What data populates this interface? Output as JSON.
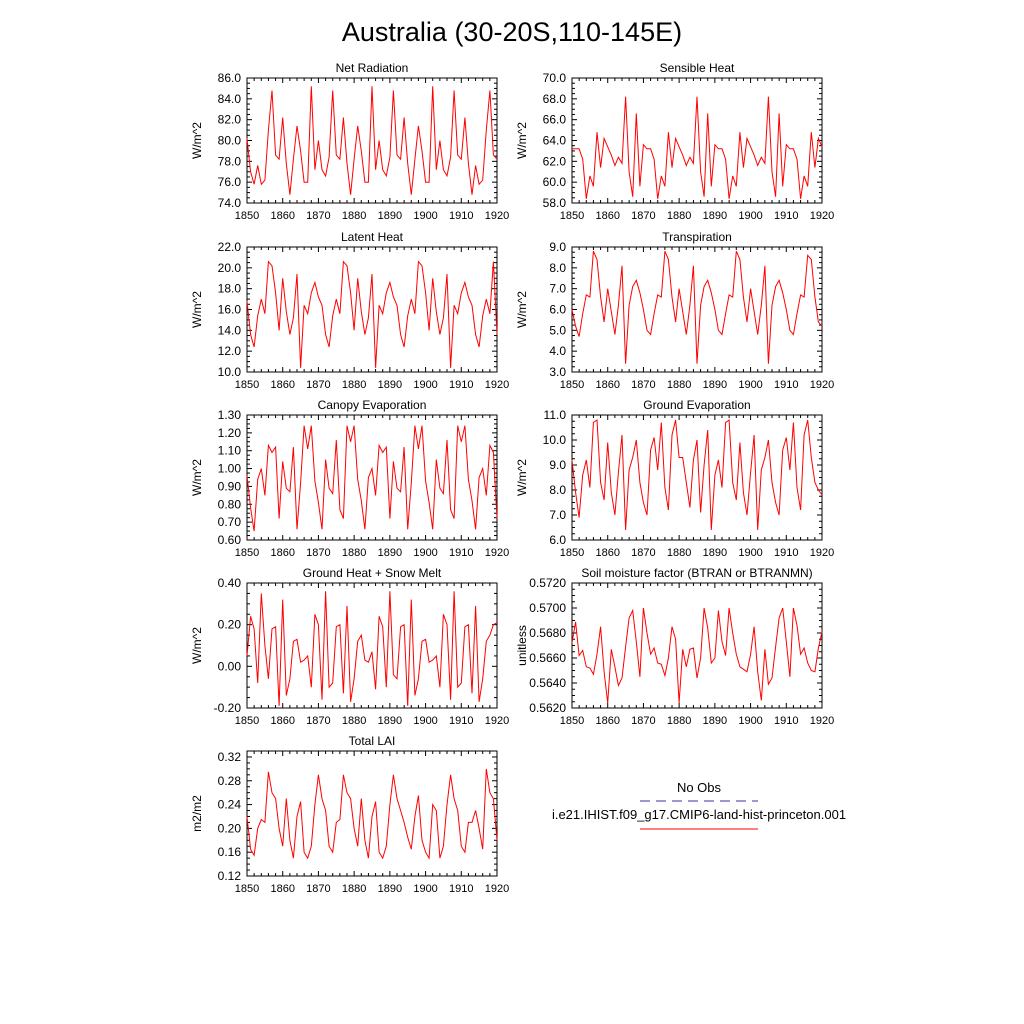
{
  "page": {
    "title": "Australia (30-20S,110-145E)"
  },
  "legend": {
    "obs_label": "No Obs",
    "model_label": "i.e21.IHIST.f09_g17.CMIP6-land-hist-princeton.001",
    "obs_color": "#3333aa",
    "model_color": "#ff0000"
  },
  "chart_data": [
    {
      "type": "line",
      "title": "Net Radiation",
      "ylabel": "W/m^2",
      "xlim": [
        1850,
        1920
      ],
      "ylim": [
        74.0,
        86.0
      ],
      "yticks": [
        "74.0",
        "76.0",
        "78.0",
        "80.0",
        "82.0",
        "84.0",
        "86.0"
      ],
      "xticks": [
        "1850",
        "1860",
        "1870",
        "1880",
        "1890",
        "1900",
        "1910",
        "1920"
      ],
      "x_start": 1850,
      "series": [
        {
          "color": "#ff0000",
          "values": [
            80.2,
            77.0,
            75.8,
            77.6,
            75.8,
            76.2,
            81.0,
            84.8,
            78.6,
            78.2,
            82.2,
            77.8,
            74.8,
            78.2,
            81.4,
            79.0,
            76.0,
            76.0,
            85.2,
            77.2,
            80.0,
            77.2,
            76.6,
            78.4,
            84.8,
            78.6,
            78.2,
            82.2,
            77.8,
            74.8,
            78.2,
            81.4,
            79.0,
            76.0,
            76.0,
            85.2,
            77.2,
            80.0,
            77.2,
            76.6,
            78.4,
            84.8,
            78.6,
            78.2,
            82.2,
            77.8,
            74.8,
            78.2,
            81.4,
            79.0,
            76.0,
            76.0,
            85.2,
            77.2,
            80.0,
            77.2,
            76.6,
            78.4,
            84.8,
            78.6,
            78.2,
            82.2,
            77.8,
            74.8,
            77.6,
            75.8,
            76.2,
            81.0,
            84.8,
            78.6,
            78.2
          ]
        }
      ]
    },
    {
      "type": "line",
      "title": "Sensible Heat",
      "ylabel": "W/m^2",
      "xlim": [
        1850,
        1920
      ],
      "ylim": [
        58.0,
        70.0
      ],
      "yticks": [
        "58.0",
        "60.0",
        "62.0",
        "64.0",
        "66.0",
        "68.0",
        "70.0"
      ],
      "xticks": [
        "1850",
        "1860",
        "1870",
        "1880",
        "1890",
        "1900",
        "1910",
        "1920"
      ],
      "x_start": 1850,
      "series": [
        {
          "color": "#ff0000",
          "values": [
            63.2,
            63.2,
            63.2,
            62.2,
            58.4,
            60.6,
            59.6,
            64.8,
            61.4,
            64.2,
            63.4,
            62.6,
            61.6,
            62.4,
            61.8,
            68.2,
            61.0,
            58.6,
            66.6,
            59.6,
            63.6,
            63.2,
            63.2,
            62.2,
            58.4,
            60.6,
            59.6,
            64.8,
            61.4,
            64.2,
            63.4,
            62.6,
            61.6,
            62.4,
            61.8,
            68.2,
            61.0,
            58.6,
            66.6,
            59.6,
            63.6,
            63.2,
            63.2,
            62.2,
            58.4,
            60.6,
            59.6,
            64.8,
            61.4,
            64.2,
            63.4,
            62.6,
            61.6,
            62.4,
            61.8,
            68.2,
            61.0,
            58.6,
            66.6,
            59.6,
            63.6,
            63.2,
            63.2,
            62.2,
            58.4,
            60.6,
            59.6,
            64.8,
            61.4,
            64.2,
            63.4
          ]
        }
      ]
    },
    {
      "type": "line",
      "title": "Latent Heat",
      "ylabel": "W/m^2",
      "xlim": [
        1850,
        1920
      ],
      "ylim": [
        10.0,
        22.0
      ],
      "yticks": [
        "10.0",
        "12.0",
        "14.0",
        "16.0",
        "18.0",
        "20.0",
        "22.0"
      ],
      "xticks": [
        "1850",
        "1860",
        "1870",
        "1880",
        "1890",
        "1900",
        "1910",
        "1920"
      ],
      "x_start": 1850,
      "series": [
        {
          "color": "#ff0000",
          "values": [
            16.8,
            13.6,
            12.4,
            15.4,
            17.0,
            15.6,
            20.6,
            20.2,
            17.6,
            14.0,
            19.0,
            15.8,
            13.6,
            15.2,
            19.4,
            10.4,
            16.4,
            15.6,
            17.6,
            18.6,
            17.2,
            16.4,
            13.6,
            12.4,
            15.4,
            17.0,
            15.6,
            20.6,
            20.2,
            17.6,
            14.0,
            19.0,
            15.8,
            13.6,
            15.2,
            19.4,
            10.4,
            16.4,
            15.6,
            17.6,
            18.6,
            17.2,
            16.4,
            13.6,
            12.4,
            15.4,
            17.0,
            15.6,
            20.6,
            20.2,
            17.6,
            14.0,
            19.0,
            15.8,
            13.6,
            15.2,
            19.4,
            10.4,
            16.4,
            15.6,
            17.6,
            18.6,
            17.2,
            16.4,
            13.6,
            12.4,
            15.4,
            17.0,
            15.6,
            20.6,
            13.6
          ]
        }
      ]
    },
    {
      "type": "line",
      "title": "Transpiration",
      "ylabel": "W/m^2",
      "xlim": [
        1850,
        1920
      ],
      "ylim": [
        3.0,
        9.0
      ],
      "yticks": [
        "3.0",
        "4.0",
        "5.0",
        "6.0",
        "7.0",
        "8.0",
        "9.0"
      ],
      "xticks": [
        "1850",
        "1860",
        "1870",
        "1880",
        "1890",
        "1900",
        "1910",
        "1920"
      ],
      "x_start": 1850,
      "series": [
        {
          "color": "#ff0000",
          "values": [
            6.0,
            5.2,
            4.7,
            5.8,
            6.7,
            6.6,
            8.8,
            8.4,
            6.6,
            5.4,
            7.0,
            5.9,
            4.8,
            6.2,
            8.1,
            3.4,
            6.2,
            7.1,
            7.4,
            6.8,
            6.0,
            5.0,
            4.8,
            5.8,
            6.7,
            6.6,
            8.8,
            8.4,
            6.6,
            5.4,
            7.0,
            5.9,
            4.8,
            6.2,
            8.1,
            3.4,
            6.2,
            7.1,
            7.4,
            6.8,
            6.0,
            5.0,
            4.8,
            5.8,
            6.7,
            6.6,
            8.8,
            8.4,
            6.6,
            5.4,
            7.0,
            5.9,
            4.8,
            6.2,
            8.1,
            3.4,
            6.2,
            7.1,
            7.4,
            6.8,
            6.0,
            5.0,
            4.8,
            5.8,
            6.7,
            6.6,
            8.6,
            8.4,
            6.6,
            5.4,
            5.2
          ]
        }
      ]
    },
    {
      "type": "line",
      "title": "Canopy Evaporation",
      "ylabel": "W/m^2",
      "xlim": [
        1850,
        1920
      ],
      "ylim": [
        0.6,
        1.3
      ],
      "yticks": [
        "0.60",
        "0.70",
        "0.80",
        "0.90",
        "1.00",
        "1.10",
        "1.20",
        "1.30"
      ],
      "xticks": [
        "1850",
        "1860",
        "1870",
        "1880",
        "1890",
        "1900",
        "1910",
        "1920"
      ],
      "x_start": 1850,
      "series": [
        {
          "color": "#ff0000",
          "values": [
            0.96,
            0.78,
            0.65,
            0.94,
            1.0,
            0.85,
            1.13,
            1.09,
            1.12,
            0.72,
            1.04,
            0.89,
            0.87,
            1.12,
            0.66,
            0.92,
            1.24,
            1.11,
            1.24,
            0.93,
            0.81,
            0.66,
            1.05,
            0.89,
            0.86,
            1.16,
            0.77,
            0.72,
            1.24,
            1.15,
            1.24,
            0.94,
            0.82,
            0.66,
            0.95,
            1.0,
            0.85,
            1.13,
            1.09,
            1.12,
            0.72,
            1.04,
            0.89,
            0.87,
            1.12,
            0.66,
            0.92,
            1.24,
            1.11,
            1.24,
            0.93,
            0.81,
            0.66,
            1.05,
            0.89,
            0.86,
            1.16,
            0.77,
            0.72,
            1.24,
            1.15,
            1.24,
            0.94,
            0.82,
            0.66,
            0.95,
            1.0,
            0.85,
            1.13,
            1.09,
            0.72
          ]
        }
      ]
    },
    {
      "type": "line",
      "title": "Ground Evaporation",
      "ylabel": "W/m^2",
      "xlim": [
        1850,
        1920
      ],
      "ylim": [
        6.0,
        11.0
      ],
      "yticks": [
        "6.0",
        "7.0",
        "8.0",
        "9.0",
        "10.0",
        "11.0"
      ],
      "xticks": [
        "1850",
        "1860",
        "1870",
        "1880",
        "1890",
        "1900",
        "1910",
        "1920"
      ],
      "x_start": 1850,
      "series": [
        {
          "color": "#ff0000",
          "values": [
            9.2,
            7.9,
            6.9,
            8.6,
            9.2,
            8.1,
            10.7,
            10.8,
            8.3,
            7.6,
            9.9,
            7.9,
            7.0,
            8.7,
            10.2,
            6.4,
            8.8,
            9.3,
            10.0,
            8.3,
            7.5,
            7.0,
            9.6,
            10.1,
            8.8,
            10.7,
            8.1,
            7.2,
            10.2,
            10.8,
            9.3,
            9.3,
            8.3,
            7.3,
            9.2,
            10.0,
            7.1,
            9.0,
            10.4,
            6.4,
            8.6,
            9.2,
            8.1,
            10.7,
            10.8,
            8.3,
            7.6,
            9.9,
            7.9,
            7.0,
            8.7,
            10.2,
            6.4,
            8.8,
            9.3,
            10.0,
            8.3,
            7.5,
            7.0,
            9.6,
            10.1,
            8.8,
            10.7,
            8.1,
            7.2,
            10.2,
            10.8,
            9.3,
            8.3,
            8.0,
            7.8
          ]
        }
      ]
    },
    {
      "type": "line",
      "title": "Ground Heat + Snow Melt",
      "ylabel": "W/m^2",
      "xlim": [
        1850,
        1920
      ],
      "ylim": [
        -0.2,
        0.4
      ],
      "yticks": [
        "-0.20",
        "0.00",
        "0.20",
        "0.40"
      ],
      "xticks": [
        "1850",
        "1860",
        "1870",
        "1880",
        "1890",
        "1900",
        "1910",
        "1920"
      ],
      "x_start": 1850,
      "series": [
        {
          "color": "#ff0000",
          "values": [
            0.05,
            0.24,
            0.18,
            -0.08,
            0.35,
            0.1,
            -0.06,
            0.18,
            0.19,
            -0.19,
            0.32,
            -0.14,
            -0.06,
            0.12,
            0.13,
            0.02,
            0.03,
            0.05,
            -0.1,
            0.25,
            0.2,
            -0.16,
            0.36,
            -0.1,
            -0.08,
            0.19,
            0.2,
            -0.13,
            0.29,
            -0.17,
            -0.06,
            0.12,
            0.15,
            0.03,
            0.02,
            0.07,
            -0.11,
            0.24,
            0.19,
            -0.1,
            0.36,
            -0.04,
            -0.06,
            0.19,
            0.2,
            -0.19,
            0.32,
            -0.14,
            -0.06,
            0.12,
            0.13,
            0.02,
            0.03,
            0.05,
            -0.1,
            0.25,
            0.2,
            -0.16,
            0.36,
            -0.1,
            -0.08,
            0.19,
            0.2,
            -0.13,
            0.29,
            -0.17,
            -0.06,
            0.12,
            0.15,
            0.2,
            0.21
          ]
        }
      ]
    },
    {
      "type": "line",
      "title": "Soil moisture factor (BTRAN or BTRANMN)",
      "ylabel": "unitless",
      "xlim": [
        1850,
        1920
      ],
      "ylim": [
        0.562,
        0.572
      ],
      "yticks": [
        "0.5620",
        "0.5640",
        "0.5660",
        "0.5680",
        "0.5700",
        "0.5720"
      ],
      "xticks": [
        "1850",
        "1860",
        "1870",
        "1880",
        "1890",
        "1900",
        "1910",
        "1920"
      ],
      "x_start": 1850,
      "series": [
        {
          "color": "#ff0000",
          "values": [
            0.5672,
            0.5689,
            0.5662,
            0.5666,
            0.5653,
            0.5652,
            0.5647,
            0.5663,
            0.5685,
            0.5649,
            0.5624,
            0.5667,
            0.5653,
            0.5638,
            0.5644,
            0.5669,
            0.5692,
            0.5698,
            0.5673,
            0.5645,
            0.57,
            0.568,
            0.5663,
            0.5668,
            0.5656,
            0.5655,
            0.5646,
            0.566,
            0.5685,
            0.5675,
            0.5624,
            0.5667,
            0.5653,
            0.5667,
            0.5668,
            0.5644,
            0.566,
            0.57,
            0.5684,
            0.5656,
            0.566,
            0.5698,
            0.5673,
            0.5662,
            0.57,
            0.568,
            0.5663,
            0.5653,
            0.5651,
            0.5649,
            0.5663,
            0.5685,
            0.5649,
            0.5626,
            0.5667,
            0.5639,
            0.5644,
            0.5669,
            0.5692,
            0.57,
            0.5673,
            0.5645,
            0.57,
            0.5686,
            0.5663,
            0.5668,
            0.5656,
            0.565,
            0.5649,
            0.5668,
            0.5681
          ]
        }
      ]
    },
    {
      "type": "line",
      "title": "Total LAI",
      "ylabel": "m2/m2",
      "xlim": [
        1850,
        1920
      ],
      "ylim": [
        0.12,
        0.33
      ],
      "yticks": [
        "0.12",
        "0.16",
        "0.20",
        "0.24",
        "0.28",
        "0.32"
      ],
      "xticks": [
        "1850",
        "1860",
        "1870",
        "1880",
        "1890",
        "1900",
        "1910",
        "1920"
      ],
      "x_start": 1850,
      "series": [
        {
          "color": "#ff0000",
          "values": [
            0.22,
            0.165,
            0.155,
            0.2,
            0.215,
            0.21,
            0.295,
            0.26,
            0.25,
            0.2,
            0.17,
            0.25,
            0.18,
            0.15,
            0.22,
            0.245,
            0.16,
            0.15,
            0.17,
            0.24,
            0.29,
            0.25,
            0.23,
            0.17,
            0.16,
            0.21,
            0.215,
            0.29,
            0.26,
            0.25,
            0.2,
            0.17,
            0.25,
            0.18,
            0.15,
            0.22,
            0.245,
            0.16,
            0.15,
            0.17,
            0.24,
            0.29,
            0.25,
            0.23,
            0.21,
            0.185,
            0.165,
            0.22,
            0.255,
            0.18,
            0.16,
            0.15,
            0.24,
            0.23,
            0.15,
            0.17,
            0.24,
            0.29,
            0.25,
            0.23,
            0.17,
            0.16,
            0.21,
            0.21,
            0.23,
            0.2,
            0.165,
            0.3,
            0.26,
            0.25,
            0.18
          ]
        }
      ]
    }
  ]
}
